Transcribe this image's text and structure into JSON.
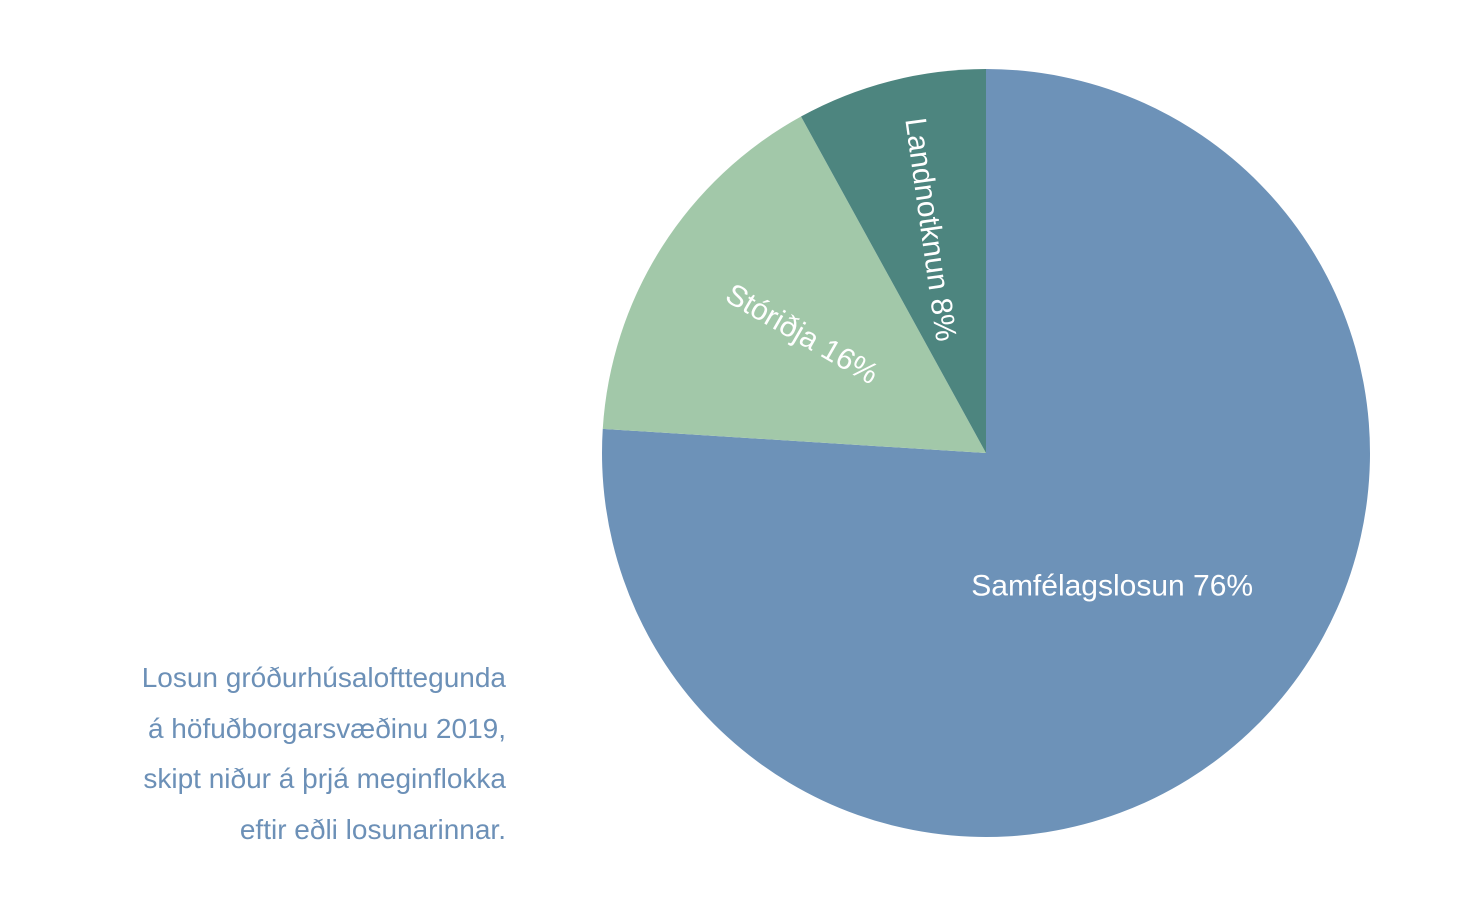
{
  "caption": {
    "lines": [
      "Losun gróðurhúsalofttegunda",
      "á höfuðborgarsvæðinu 2019,",
      "skipt niður á þrjá meginflokka",
      "eftir eðli losunarinnar."
    ]
  },
  "chart_data": {
    "type": "pie",
    "start": "12 o'clock",
    "direction": "clockwise",
    "slices": [
      {
        "label": "Samfélagslosun 76%",
        "category": "Samfélagslosun",
        "value": 76,
        "color": "#6d92b8"
      },
      {
        "label": "Stóriðja 16%",
        "category": "Stóriðja",
        "value": 16,
        "color": "#a2c8a9"
      },
      {
        "label": "Landnotknun 8%",
        "category": "Landnotknun",
        "value": 8,
        "color": "#4d857f"
      }
    ]
  }
}
